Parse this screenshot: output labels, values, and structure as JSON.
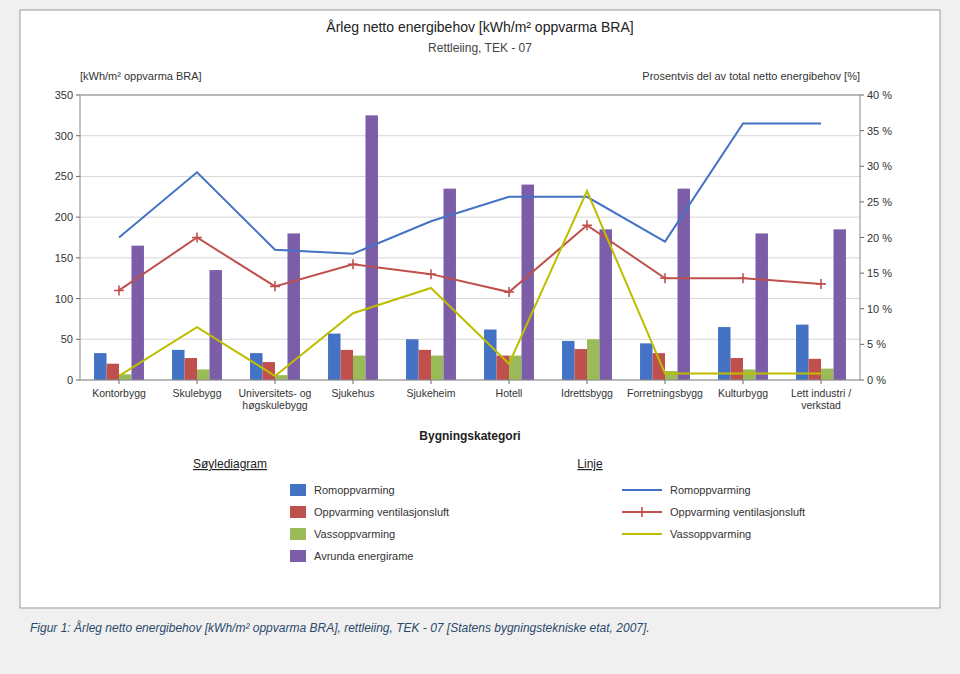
{
  "chart_data": {
    "type": "bar",
    "title": "Årleg netto energibehov [kWh/m² oppvarma BRA]",
    "subtitle": "Rettleiing, TEK - 07",
    "ylabel": "[kWh/m² oppvarma BRA]",
    "y2label": "Prosentvis del av total netto energibehov [%]",
    "xlabel": "Bygningskategori",
    "categories": [
      "Kontorbygg",
      "Skulebygg",
      "Universitets- og\nhøgskulebygg",
      "Sjukehus",
      "Sjukeheim",
      "Hotell",
      "Idrettsbygg",
      "Forretningsbygg",
      "Kulturbygg",
      "Lett industri /\nverkstad"
    ],
    "series": [
      {
        "name": "Romoppvarming",
        "type": "bar",
        "color": "#4472c4",
        "values": [
          33,
          37,
          33,
          57,
          50,
          62,
          48,
          45,
          65,
          68
        ]
      },
      {
        "name": "Oppvarming ventilasjonsluft",
        "type": "bar",
        "color": "#c0504d",
        "values": [
          20,
          27,
          22,
          37,
          37,
          30,
          38,
          33,
          27,
          26
        ]
      },
      {
        "name": "Vassoppvarming",
        "type": "bar",
        "color": "#9bbb59",
        "values": [
          7,
          13,
          6,
          30,
          30,
          30,
          50,
          11,
          13,
          14
        ]
      },
      {
        "name": "Avrunda energirame",
        "type": "bar",
        "color": "#7b5ea7",
        "values": [
          165,
          135,
          180,
          325,
          235,
          240,
          185,
          235,
          180,
          185
        ]
      },
      {
        "name": "Romoppvarming",
        "type": "line",
        "color": "#4472c4",
        "values": [
          175,
          255,
          160,
          155,
          195,
          225,
          225,
          170,
          315,
          315
        ]
      },
      {
        "name": "Oppvarming ventilasjonsluft",
        "type": "line",
        "color": "#c0504d",
        "marker": "plus",
        "values": [
          110,
          175,
          115,
          142,
          130,
          108,
          190,
          125,
          125,
          118
        ]
      },
      {
        "name": "Vassoppvarming",
        "type": "line",
        "color": "#bebe00",
        "values": [
          5,
          65,
          5,
          82,
          113,
          20,
          232,
          8,
          8,
          8
        ]
      }
    ],
    "ylim": [
      0,
      350
    ],
    "yticks": [
      0,
      50,
      100,
      150,
      200,
      250,
      300,
      350
    ],
    "y2lim": [
      0,
      0.4
    ],
    "y2ticks": [
      {
        "value": 0,
        "label": "0 %"
      },
      {
        "value": 0.05,
        "label": "5 %"
      },
      {
        "value": 0.1,
        "label": "10 %"
      },
      {
        "value": 0.15,
        "label": "15 %"
      },
      {
        "value": 0.2,
        "label": "20 %"
      },
      {
        "value": 0.25,
        "label": "25 %"
      },
      {
        "value": 0.3,
        "label": "30 %"
      },
      {
        "value": 0.35,
        "label": "35 %"
      },
      {
        "value": 0.4,
        "label": "40 %"
      }
    ],
    "grid": true,
    "legend": "bottom",
    "annotations": [
      "Søylediagram",
      "Linje"
    ],
    "caption": "Figur 1: Årleg netto energibehov [kWh/m² oppvarma BRA], rettleiing, TEK - 07 [Statens bygningstekniske etat, 2007]."
  }
}
